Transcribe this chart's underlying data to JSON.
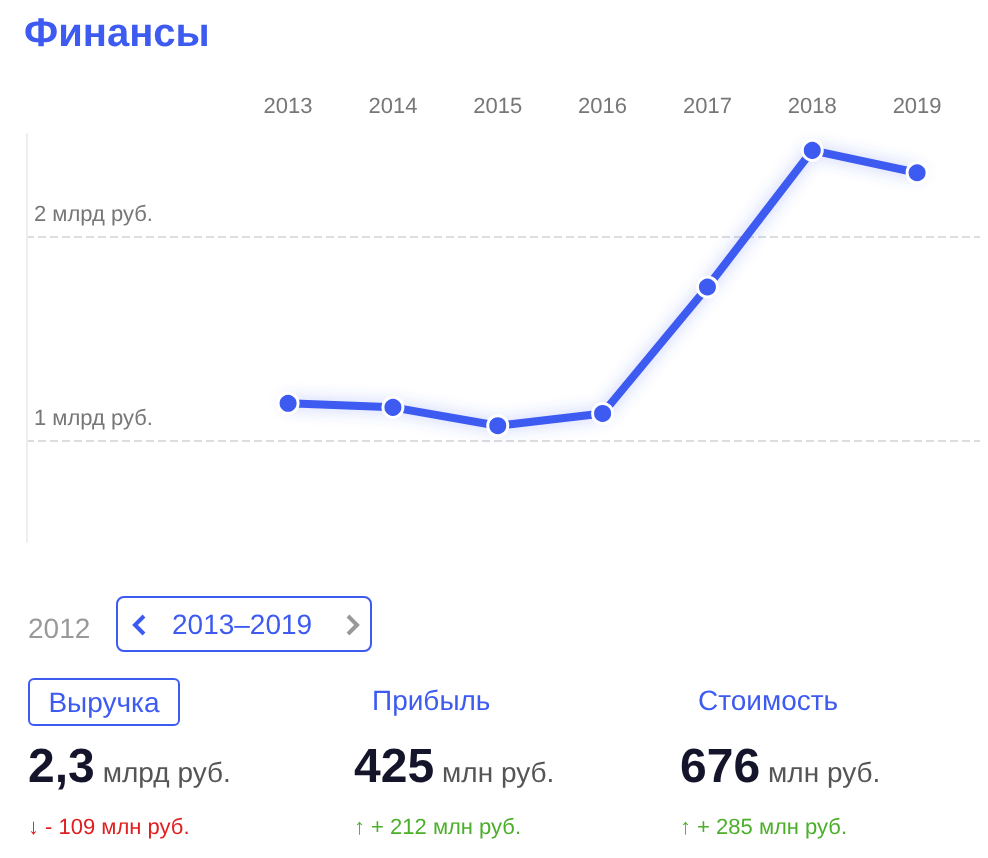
{
  "chart_data": [
    {
      "type": "line",
      "title": "Финансы",
      "x": [
        2013,
        2014,
        2015,
        2016,
        2017,
        2018,
        2019
      ],
      "series": [
        {
          "color": "#3d5af1",
          "values": [
            1.18,
            1.16,
            1.07,
            1.13,
            1.75,
            2.42,
            2.31
          ]
        }
      ],
      "xlim": [
        2010.5,
        2019.6
      ],
      "xticks": [
        2013,
        2014,
        2015,
        2016,
        2017,
        2018,
        2019
      ],
      "ylim": [
        0.5,
        2.5
      ],
      "yticks": [
        {
          "value": 1,
          "label": "1 млрд руб."
        },
        {
          "value": 2,
          "label": "2 млрд руб."
        }
      ],
      "grid": "y",
      "marker": "circle",
      "line_style": "solid"
    },
    {
      "type": "other",
      "annotations": [
        "2012",
        "2013–2019",
        "Выручка",
        "Прибыль",
        "Стоимость",
        "2,3",
        "млрд руб.",
        "425",
        "млн руб.",
        "676",
        "млн руб.",
        "↓ - 109 млн руб.",
        "↑ + 212 млн руб.",
        "↑ + 285 млн руб."
      ]
    }
  ]
}
